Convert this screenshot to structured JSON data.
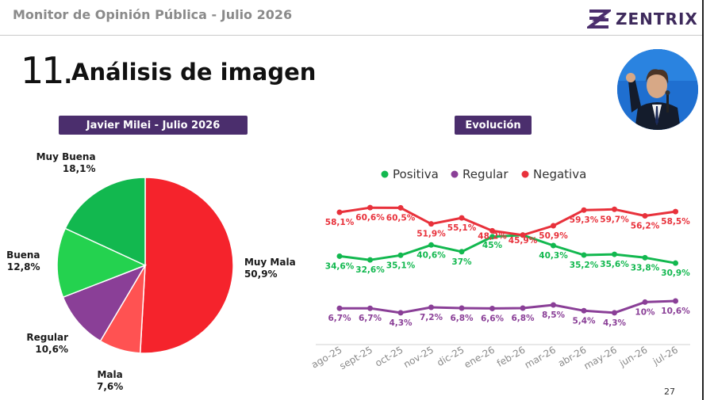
{
  "header": {
    "title": "Monitor de Opinión Pública - Julio 2026",
    "logo_text": "ZENTRIX"
  },
  "section": {
    "number": "11",
    "title": "Análisis de imagen"
  },
  "page_number": "27",
  "colors": {
    "purple": "#4b2e6d",
    "muy_buena": "#12b84f",
    "buena": "#24d24f",
    "regular": "#8a3f97",
    "mala": "#ff5252",
    "muy_mala": "#f5232c",
    "positiva": "#12b84f",
    "regular_line": "#8a3f97",
    "negativa": "#e8313b"
  },
  "chart_data": [
    {
      "type": "pie",
      "title": "Javier Milei - Julio 2026",
      "slices": [
        {
          "label": "Muy Mala",
          "value": 50.9,
          "display": "50,9%",
          "color": "#f5232c"
        },
        {
          "label": "Mala",
          "value": 7.6,
          "display": "7,6%",
          "color": "#ff5252"
        },
        {
          "label": "Regular",
          "value": 10.6,
          "display": "10,6%",
          "color": "#8a3f97"
        },
        {
          "label": "Buena",
          "value": 12.8,
          "display": "12,8%",
          "color": "#24d24f"
        },
        {
          "label": "Muy Buena",
          "value": 18.1,
          "display": "18,1%",
          "color": "#12b84f"
        }
      ]
    },
    {
      "type": "line",
      "title": "Evolución",
      "categories": [
        "ago-25",
        "sept-25",
        "oct-25",
        "nov-25",
        "dic-25",
        "ene-26",
        "feb-26",
        "mar-26",
        "abr-26",
        "may-26",
        "jun-26",
        "jul-26"
      ],
      "legend_position": "top",
      "grid": false,
      "ylim": [
        0,
        70
      ],
      "series": [
        {
          "name": "Positiva",
          "color": "#12b84f",
          "values": [
            34.6,
            32.6,
            35.1,
            40.6,
            37,
            45,
            45.9,
            40.3,
            35.2,
            35.6,
            33.8,
            30.9
          ],
          "labels": [
            "34,6%",
            "32,6%",
            "35,1%",
            "40,6%",
            "37%",
            "45%",
            "",
            "40,3%",
            "35,2%",
            "35,6%",
            "33,8%",
            "30,9%"
          ]
        },
        {
          "name": "Regular",
          "color": "#8a3f97",
          "values": [
            6.7,
            6.7,
            4.3,
            7.2,
            6.8,
            6.6,
            6.8,
            8.5,
            5.4,
            4.3,
            10,
            10.6
          ],
          "labels": [
            "6,7%",
            "6,7%",
            "4,3%",
            "7,2%",
            "6,8%",
            "6,6%",
            "6,8%",
            "8,5%",
            "5,4%",
            "4,3%",
            "10%",
            "10,6%"
          ]
        },
        {
          "name": "Negativa",
          "color": "#e8313b",
          "values": [
            58.1,
            60.6,
            60.5,
            51.9,
            55.1,
            48.2,
            45.9,
            50.9,
            59.3,
            59.7,
            56.2,
            58.5
          ],
          "labels": [
            "58,1%",
            "60,6%",
            "60,5%",
            "51,9%",
            "55,1%",
            "48,2%",
            "45,9%",
            "50,9%",
            "59,3%",
            "59,7%",
            "56,2%",
            "58,5%"
          ]
        }
      ]
    }
  ]
}
